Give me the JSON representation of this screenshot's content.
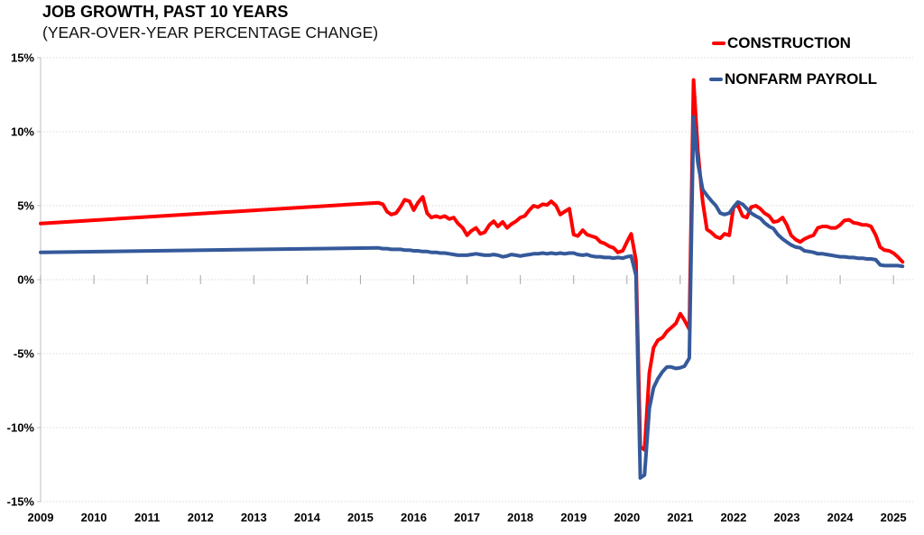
{
  "chart_data": {
    "type": "line",
    "title": "JOB GROWTH, PAST 10 YEARS",
    "subtitle": "(YEAR-OVER-YEAR PERCENTAGE CHANGE)",
    "xlabel": "",
    "ylabel": "",
    "xlim": [
      2009,
      2025.37
    ],
    "ylim": [
      -15,
      15
    ],
    "grid": "horizontal-dotted-light-gray",
    "legend_position": "top-right-inside",
    "x_axis_cross": 0,
    "y_ticks": [
      {
        "label": "15%",
        "value": 15
      },
      {
        "label": "10%",
        "value": 10
      },
      {
        "label": "5%",
        "value": 5
      },
      {
        "label": "0%",
        "value": 0
      },
      {
        "label": "-5%",
        "value": -5
      },
      {
        "label": "-10%",
        "value": -10
      },
      {
        "label": "-15%",
        "value": -15
      }
    ],
    "x_ticks": [
      {
        "label": "2009",
        "value": 2009
      },
      {
        "label": "2010",
        "value": 2010
      },
      {
        "label": "2011",
        "value": 2011
      },
      {
        "label": "2012",
        "value": 2012
      },
      {
        "label": "2013",
        "value": 2013
      },
      {
        "label": "2014",
        "value": 2014
      },
      {
        "label": "2015",
        "value": 2015
      },
      {
        "label": "2016",
        "value": 2016
      },
      {
        "label": "2017",
        "value": 2017
      },
      {
        "label": "2018",
        "value": 2018
      },
      {
        "label": "2019",
        "value": 2019
      },
      {
        "label": "2020",
        "value": 2020
      },
      {
        "label": "2021",
        "value": 2021
      },
      {
        "label": "2022",
        "value": 2022
      },
      {
        "label": "2023",
        "value": 2023
      },
      {
        "label": "2024",
        "value": 2024
      },
      {
        "label": "2025",
        "value": 2025
      }
    ],
    "series": [
      {
        "name": "CONSTRUCTION",
        "color": "#FF0000",
        "points": [
          [
            2009,
            3.8
          ],
          [
            2015.33,
            5.2
          ],
          [
            2015.42,
            5.1
          ],
          [
            2015.5,
            4.6
          ],
          [
            2015.58,
            4.4
          ],
          [
            2015.67,
            4.5
          ],
          [
            2015.75,
            4.9
          ],
          [
            2015.83,
            5.4
          ],
          [
            2015.92,
            5.3
          ],
          [
            2016,
            4.7
          ],
          [
            2016.08,
            5.2
          ],
          [
            2016.17,
            5.6
          ],
          [
            2016.25,
            4.5
          ],
          [
            2016.33,
            4.2
          ],
          [
            2016.42,
            4.3
          ],
          [
            2016.5,
            4.2
          ],
          [
            2016.58,
            4.3
          ],
          [
            2016.67,
            4.1
          ],
          [
            2016.75,
            4.2
          ],
          [
            2016.83,
            3.8
          ],
          [
            2016.92,
            3.5
          ],
          [
            2017,
            3
          ],
          [
            2017.08,
            3.3
          ],
          [
            2017.17,
            3.5
          ],
          [
            2017.25,
            3.1
          ],
          [
            2017.33,
            3.2
          ],
          [
            2017.42,
            3.7
          ],
          [
            2017.5,
            3.95
          ],
          [
            2017.58,
            3.6
          ],
          [
            2017.67,
            3.9
          ],
          [
            2017.75,
            3.5
          ],
          [
            2017.83,
            3.75
          ],
          [
            2017.92,
            3.95
          ],
          [
            2018,
            4.2
          ],
          [
            2018.08,
            4.3
          ],
          [
            2018.17,
            4.7
          ],
          [
            2018.25,
            5
          ],
          [
            2018.33,
            4.9
          ],
          [
            2018.42,
            5.1
          ],
          [
            2018.5,
            5.05
          ],
          [
            2018.58,
            5.3
          ],
          [
            2018.67,
            5
          ],
          [
            2018.75,
            4.4
          ],
          [
            2018.83,
            4.6
          ],
          [
            2018.92,
            4.8
          ],
          [
            2019,
            3.05
          ],
          [
            2019.08,
            2.95
          ],
          [
            2019.17,
            3.35
          ],
          [
            2019.25,
            3.05
          ],
          [
            2019.33,
            2.95
          ],
          [
            2019.42,
            2.85
          ],
          [
            2019.5,
            2.55
          ],
          [
            2019.58,
            2.45
          ],
          [
            2019.67,
            2.25
          ],
          [
            2019.75,
            2.15
          ],
          [
            2019.83,
            1.85
          ],
          [
            2019.92,
            1.95
          ],
          [
            2020,
            2.55
          ],
          [
            2020.08,
            3.1
          ],
          [
            2020.17,
            1.3
          ],
          [
            2020.25,
            -11.3
          ],
          [
            2020.33,
            -11.5
          ],
          [
            2020.42,
            -6.3
          ],
          [
            2020.5,
            -4.6
          ],
          [
            2020.58,
            -4.1
          ],
          [
            2020.67,
            -3.9
          ],
          [
            2020.75,
            -3.5
          ],
          [
            2020.83,
            -3.25
          ],
          [
            2020.92,
            -2.95
          ],
          [
            2021,
            -2.3
          ],
          [
            2021.08,
            -2.75
          ],
          [
            2021.17,
            -3.35
          ],
          [
            2021.25,
            13.5
          ],
          [
            2021.33,
            8.7
          ],
          [
            2021.42,
            5.3
          ],
          [
            2021.5,
            3.4
          ],
          [
            2021.58,
            3.2
          ],
          [
            2021.67,
            2.9
          ],
          [
            2021.75,
            2.8
          ],
          [
            2021.83,
            3.1
          ],
          [
            2021.92,
            3
          ],
          [
            2022,
            4.9
          ],
          [
            2022.08,
            5.05
          ],
          [
            2022.17,
            4.3
          ],
          [
            2022.25,
            4.2
          ],
          [
            2022.33,
            4.9
          ],
          [
            2022.42,
            5
          ],
          [
            2022.5,
            4.8
          ],
          [
            2022.58,
            4.5
          ],
          [
            2022.67,
            4.3
          ],
          [
            2022.75,
            3.9
          ],
          [
            2022.83,
            3.95
          ],
          [
            2022.92,
            4.2
          ],
          [
            2023,
            3.7
          ],
          [
            2023.08,
            3
          ],
          [
            2023.17,
            2.7
          ],
          [
            2023.25,
            2.55
          ],
          [
            2023.33,
            2.75
          ],
          [
            2023.42,
            2.9
          ],
          [
            2023.5,
            3
          ],
          [
            2023.58,
            3.5
          ],
          [
            2023.67,
            3.6
          ],
          [
            2023.75,
            3.6
          ],
          [
            2023.83,
            3.5
          ],
          [
            2023.92,
            3.5
          ],
          [
            2024,
            3.7
          ],
          [
            2024.08,
            4
          ],
          [
            2024.17,
            4.05
          ],
          [
            2024.25,
            3.85
          ],
          [
            2024.33,
            3.8
          ],
          [
            2024.42,
            3.7
          ],
          [
            2024.5,
            3.7
          ],
          [
            2024.58,
            3.6
          ],
          [
            2024.67,
            3
          ],
          [
            2024.75,
            2.2
          ],
          [
            2024.83,
            2
          ],
          [
            2024.92,
            1.95
          ],
          [
            2025,
            1.8
          ],
          [
            2025.08,
            1.55
          ],
          [
            2025.17,
            1.2
          ]
        ]
      },
      {
        "name": "NONFARM PAYROLL",
        "color": "#35599A",
        "points": [
          [
            2009,
            1.85
          ],
          [
            2015.33,
            2.15
          ],
          [
            2015.42,
            2.1
          ],
          [
            2015.5,
            2.1
          ],
          [
            2015.58,
            2.05
          ],
          [
            2015.67,
            2.05
          ],
          [
            2015.75,
            2.05
          ],
          [
            2015.83,
            2
          ],
          [
            2015.92,
            2
          ],
          [
            2016,
            1.95
          ],
          [
            2016.08,
            1.95
          ],
          [
            2016.17,
            1.9
          ],
          [
            2016.25,
            1.9
          ],
          [
            2016.33,
            1.85
          ],
          [
            2016.42,
            1.85
          ],
          [
            2016.5,
            1.8
          ],
          [
            2016.58,
            1.8
          ],
          [
            2016.67,
            1.75
          ],
          [
            2016.75,
            1.7
          ],
          [
            2016.83,
            1.65
          ],
          [
            2016.92,
            1.65
          ],
          [
            2017,
            1.65
          ],
          [
            2017.08,
            1.7
          ],
          [
            2017.17,
            1.75
          ],
          [
            2017.25,
            1.7
          ],
          [
            2017.33,
            1.65
          ],
          [
            2017.42,
            1.65
          ],
          [
            2017.5,
            1.7
          ],
          [
            2017.58,
            1.65
          ],
          [
            2017.67,
            1.55
          ],
          [
            2017.75,
            1.6
          ],
          [
            2017.83,
            1.7
          ],
          [
            2017.92,
            1.65
          ],
          [
            2018,
            1.6
          ],
          [
            2018.08,
            1.65
          ],
          [
            2018.17,
            1.7
          ],
          [
            2018.25,
            1.75
          ],
          [
            2018.33,
            1.75
          ],
          [
            2018.42,
            1.8
          ],
          [
            2018.5,
            1.75
          ],
          [
            2018.58,
            1.8
          ],
          [
            2018.67,
            1.75
          ],
          [
            2018.75,
            1.8
          ],
          [
            2018.83,
            1.75
          ],
          [
            2018.92,
            1.8
          ],
          [
            2019,
            1.8
          ],
          [
            2019.08,
            1.7
          ],
          [
            2019.17,
            1.65
          ],
          [
            2019.25,
            1.7
          ],
          [
            2019.33,
            1.6
          ],
          [
            2019.42,
            1.55
          ],
          [
            2019.5,
            1.55
          ],
          [
            2019.58,
            1.5
          ],
          [
            2019.67,
            1.5
          ],
          [
            2019.75,
            1.45
          ],
          [
            2019.83,
            1.5
          ],
          [
            2019.92,
            1.45
          ],
          [
            2020,
            1.55
          ],
          [
            2020.08,
            1.6
          ],
          [
            2020.17,
            0.3
          ],
          [
            2020.25,
            -13.4
          ],
          [
            2020.33,
            -13.2
          ],
          [
            2020.42,
            -8.7
          ],
          [
            2020.5,
            -7.3
          ],
          [
            2020.58,
            -6.7
          ],
          [
            2020.67,
            -6.2
          ],
          [
            2020.75,
            -5.9
          ],
          [
            2020.83,
            -5.9
          ],
          [
            2020.92,
            -6
          ],
          [
            2021,
            -5.95
          ],
          [
            2021.08,
            -5.85
          ],
          [
            2021.17,
            -5.3
          ],
          [
            2021.25,
            11
          ],
          [
            2021.33,
            7.9
          ],
          [
            2021.42,
            6.1
          ],
          [
            2021.5,
            5.7
          ],
          [
            2021.58,
            5.35
          ],
          [
            2021.67,
            5
          ],
          [
            2021.75,
            4.5
          ],
          [
            2021.83,
            4.4
          ],
          [
            2021.92,
            4.5
          ],
          [
            2022,
            4.9
          ],
          [
            2022.08,
            5.25
          ],
          [
            2022.17,
            5.1
          ],
          [
            2022.25,
            4.8
          ],
          [
            2022.33,
            4.5
          ],
          [
            2022.42,
            4.3
          ],
          [
            2022.5,
            4.15
          ],
          [
            2022.58,
            3.85
          ],
          [
            2022.67,
            3.6
          ],
          [
            2022.75,
            3.45
          ],
          [
            2022.83,
            3.05
          ],
          [
            2022.92,
            2.75
          ],
          [
            2023,
            2.55
          ],
          [
            2023.08,
            2.35
          ],
          [
            2023.17,
            2.2
          ],
          [
            2023.25,
            2.15
          ],
          [
            2023.33,
            1.95
          ],
          [
            2023.42,
            1.9
          ],
          [
            2023.5,
            1.85
          ],
          [
            2023.58,
            1.75
          ],
          [
            2023.67,
            1.75
          ],
          [
            2023.75,
            1.7
          ],
          [
            2023.83,
            1.65
          ],
          [
            2023.92,
            1.6
          ],
          [
            2024,
            1.55
          ],
          [
            2024.08,
            1.55
          ],
          [
            2024.17,
            1.5
          ],
          [
            2024.25,
            1.5
          ],
          [
            2024.33,
            1.45
          ],
          [
            2024.42,
            1.45
          ],
          [
            2024.5,
            1.4
          ],
          [
            2024.58,
            1.4
          ],
          [
            2024.67,
            1.35
          ],
          [
            2024.75,
            1
          ],
          [
            2024.83,
            0.95
          ],
          [
            2024.92,
            0.95
          ],
          [
            2025,
            0.95
          ],
          [
            2025.08,
            0.95
          ],
          [
            2025.17,
            0.9
          ]
        ]
      }
    ]
  }
}
